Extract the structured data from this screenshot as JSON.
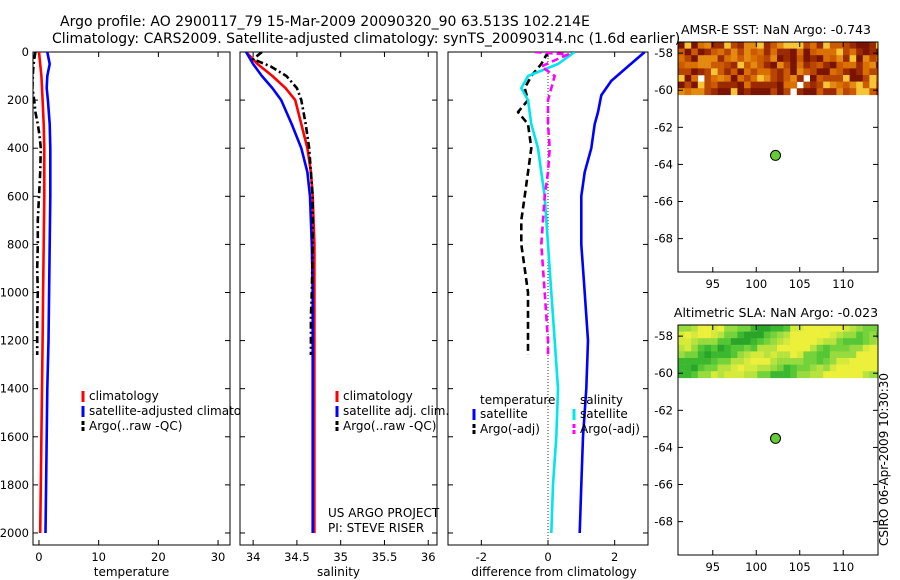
{
  "header": {
    "line1": "Argo profile: AO 2900117_79 15-Mar-2009 20090320_90 63.513S 102.214E",
    "line2": "Climatology: CARS2009. Satellite-adjusted climatology: synTS_20090314.nc (1.6d earlier)"
  },
  "sidebar_stamp": "CSIRO 06-Apr-2009 10:30:30",
  "colors": {
    "climatology": "#ff0000",
    "satellite": "#0000ff",
    "argo": "#000000",
    "satellite_diff_salinity": "#00e5ee",
    "argo_diff_salinity": "#ff00ff",
    "marker": "#66cc33"
  },
  "chart_data": [
    {
      "type": "line",
      "xlabel": "temperature",
      "ylabel": "",
      "xlim": [
        -1,
        32
      ],
      "ylim": [
        2050,
        0
      ],
      "y_reversed": true,
      "xticks": [
        "0",
        "10",
        "20",
        "30"
      ],
      "xtick_values": [
        0,
        10,
        20,
        30
      ],
      "yticks": [
        "0",
        "200",
        "400",
        "600",
        "800",
        "1000",
        "1200",
        "1400",
        "1600",
        "1800",
        "2000"
      ],
      "ytick_values": [
        0,
        200,
        400,
        600,
        800,
        1000,
        1200,
        1400,
        1600,
        1800,
        2000
      ],
      "legend": [
        {
          "label": "climatology",
          "color": "#ff0000",
          "dash": "solid"
        },
        {
          "label": "satellite-adjusted climatolo",
          "color": "#0000ff",
          "dash": "solid"
        },
        {
          "label": "Argo(..raw -QC)",
          "color": "#000000",
          "dash": "dashdot"
        }
      ],
      "series": [
        {
          "color": "#ff0000",
          "dash": "solid",
          "points": [
            [
              0.0,
              0
            ],
            [
              0.2,
              50
            ],
            [
              0.4,
              100
            ],
            [
              0.6,
              200
            ],
            [
              0.8,
              300
            ],
            [
              0.9,
              400
            ],
            [
              0.9,
              600
            ],
            [
              0.8,
              800
            ],
            [
              0.7,
              1000
            ],
            [
              0.6,
              1200
            ],
            [
              0.5,
              1400
            ],
            [
              0.4,
              1600
            ],
            [
              0.3,
              1800
            ],
            [
              0.2,
              2000
            ]
          ]
        },
        {
          "color": "#0000ff",
          "dash": "solid",
          "points": [
            [
              1.4,
              0
            ],
            [
              1.8,
              50
            ],
            [
              1.4,
              100
            ],
            [
              1.3,
              150
            ],
            [
              1.5,
              200
            ],
            [
              1.8,
              300
            ],
            [
              1.9,
              400
            ],
            [
              1.9,
              600
            ],
            [
              1.8,
              800
            ],
            [
              1.7,
              1000
            ],
            [
              1.6,
              1200
            ],
            [
              1.4,
              1400
            ],
            [
              1.3,
              1600
            ],
            [
              1.2,
              1800
            ],
            [
              1.1,
              2000
            ]
          ]
        },
        {
          "color": "#000000",
          "dash": "dashdot",
          "points": [
            [
              -0.6,
              0
            ],
            [
              -0.8,
              30
            ],
            [
              -1.0,
              80
            ],
            [
              -1.1,
              150
            ],
            [
              -0.8,
              200
            ],
            [
              -0.6,
              250
            ],
            [
              -0.2,
              300
            ],
            [
              0.1,
              350
            ],
            [
              0.3,
              400
            ],
            [
              0.2,
              500
            ],
            [
              0.0,
              600
            ],
            [
              -0.2,
              700
            ],
            [
              -0.2,
              800
            ],
            [
              -0.3,
              900
            ],
            [
              -0.2,
              1000
            ],
            [
              -0.3,
              1100
            ],
            [
              -0.3,
              1200
            ],
            [
              -0.3,
              1260
            ]
          ]
        }
      ]
    },
    {
      "type": "line",
      "xlabel": "salinity",
      "ylabel": "",
      "xlim": [
        33.85,
        36.1
      ],
      "ylim": [
        2050,
        0
      ],
      "y_reversed": true,
      "xticks": [
        "34",
        "34.5",
        "35",
        "35.5",
        "36"
      ],
      "xtick_values": [
        34,
        34.5,
        35,
        35.5,
        36
      ],
      "legend": [
        {
          "label": "climatology",
          "color": "#ff0000",
          "dash": "solid"
        },
        {
          "label": "satellite adj. clim.",
          "color": "#0000ff",
          "dash": "solid"
        },
        {
          "label": "Argo(..raw -QC)",
          "color": "#000000",
          "dash": "dashdot"
        }
      ],
      "annotation": [
        "US ARGO PROJECT",
        "PI: STEVE RISER"
      ],
      "series": [
        {
          "color": "#ff0000",
          "dash": "solid",
          "points": [
            [
              33.92,
              0
            ],
            [
              34.05,
              50
            ],
            [
              34.22,
              100
            ],
            [
              34.37,
              150
            ],
            [
              34.48,
              200
            ],
            [
              34.55,
              300
            ],
            [
              34.62,
              400
            ],
            [
              34.66,
              500
            ],
            [
              34.68,
              600
            ],
            [
              34.7,
              800
            ],
            [
              34.7,
              1000
            ],
            [
              34.7,
              1200
            ],
            [
              34.7,
              1400
            ],
            [
              34.7,
              1600
            ],
            [
              34.7,
              1800
            ],
            [
              34.7,
              2000
            ]
          ]
        },
        {
          "color": "#0000ff",
          "dash": "solid",
          "points": [
            [
              33.92,
              0
            ],
            [
              34.0,
              50
            ],
            [
              34.1,
              100
            ],
            [
              34.22,
              150
            ],
            [
              34.32,
              200
            ],
            [
              34.44,
              300
            ],
            [
              34.55,
              400
            ],
            [
              34.62,
              500
            ],
            [
              34.65,
              600
            ],
            [
              34.67,
              800
            ],
            [
              34.68,
              1000
            ],
            [
              34.68,
              1200
            ],
            [
              34.68,
              1400
            ],
            [
              34.68,
              1600
            ],
            [
              34.68,
              1800
            ],
            [
              34.68,
              2000
            ]
          ]
        },
        {
          "color": "#000000",
          "dash": "dashdot",
          "points": [
            [
              34.1,
              0
            ],
            [
              34.0,
              30
            ],
            [
              34.2,
              60
            ],
            [
              34.38,
              100
            ],
            [
              34.5,
              150
            ],
            [
              34.55,
              200
            ],
            [
              34.6,
              300
            ],
            [
              34.64,
              400
            ],
            [
              34.66,
              500
            ],
            [
              34.68,
              600
            ],
            [
              34.68,
              800
            ],
            [
              34.67,
              1000
            ],
            [
              34.66,
              1100
            ],
            [
              34.66,
              1200
            ],
            [
              34.66,
              1260
            ]
          ]
        }
      ]
    },
    {
      "type": "line",
      "xlabel": "difference from climatology",
      "ylabel": "",
      "xlim": [
        -3,
        3
      ],
      "ylim": [
        2050,
        0
      ],
      "y_reversed": true,
      "xticks": [
        "-2",
        "0",
        "2"
      ],
      "xtick_values": [
        -2,
        0,
        2
      ],
      "legend_left_title": "temperature",
      "legend_right_title": "salinity",
      "legend": [
        {
          "label": "satellite",
          "color": "#0000ff",
          "dash": "solid",
          "column": "left"
        },
        {
          "label": "Argo(-adj)",
          "color": "#000000",
          "dash": "dashed",
          "column": "left"
        },
        {
          "label": "satellite",
          "color": "#00e5ee",
          "dash": "solid",
          "column": "right"
        },
        {
          "label": "Argo(-adj)",
          "color": "#ff00ff",
          "dash": "dashed",
          "column": "right"
        }
      ],
      "series": [
        {
          "color": "#0000ff",
          "dash": "solid",
          "points": [
            [
              2.9,
              0
            ],
            [
              2.4,
              60
            ],
            [
              1.9,
              120
            ],
            [
              1.6,
              180
            ],
            [
              1.5,
              250
            ],
            [
              1.4,
              300
            ],
            [
              1.3,
              400
            ],
            [
              1.1,
              500
            ],
            [
              1.0,
              600
            ],
            [
              1.0,
              800
            ],
            [
              1.1,
              1000
            ],
            [
              1.2,
              1200
            ],
            [
              1.15,
              1400
            ],
            [
              1.05,
              1600
            ],
            [
              1.0,
              1800
            ],
            [
              0.95,
              2000
            ]
          ]
        },
        {
          "color": "#000000",
          "dash": "dashed",
          "points": [
            [
              0.0,
              0
            ],
            [
              -0.2,
              50
            ],
            [
              -0.5,
              100
            ],
            [
              -0.7,
              150
            ],
            [
              -0.6,
              200
            ],
            [
              -0.9,
              250
            ],
            [
              -0.6,
              300
            ],
            [
              -0.5,
              400
            ],
            [
              -0.6,
              500
            ],
            [
              -0.7,
              600
            ],
            [
              -0.8,
              700
            ],
            [
              -0.8,
              800
            ],
            [
              -0.7,
              900
            ],
            [
              -0.6,
              1000
            ],
            [
              -0.6,
              1100
            ],
            [
              -0.6,
              1200
            ],
            [
              -0.6,
              1260
            ]
          ]
        },
        {
          "color": "#00e5ee",
          "dash": "solid",
          "points": [
            [
              0.8,
              0
            ],
            [
              0.3,
              50
            ],
            [
              -0.6,
              100
            ],
            [
              -0.8,
              150
            ],
            [
              -0.6,
              200
            ],
            [
              -0.5,
              300
            ],
            [
              -0.3,
              400
            ],
            [
              -0.2,
              500
            ],
            [
              -0.1,
              600
            ],
            [
              0.0,
              800
            ],
            [
              0.1,
              1000
            ],
            [
              0.2,
              1200
            ],
            [
              0.3,
              1400
            ],
            [
              0.25,
              1600
            ],
            [
              0.15,
              1800
            ],
            [
              0.1,
              2000
            ]
          ]
        },
        {
          "color": "#ff00ff",
          "dash": "dashed",
          "points": [
            [
              -0.4,
              0
            ],
            [
              0.6,
              10
            ],
            [
              -0.2,
              60
            ],
            [
              0.2,
              100
            ],
            [
              0.1,
              150
            ],
            [
              0.0,
              200
            ],
            [
              0.0,
              300
            ],
            [
              0.05,
              400
            ],
            [
              0.0,
              500
            ],
            [
              -0.1,
              600
            ],
            [
              -0.2,
              800
            ],
            [
              -0.1,
              1000
            ],
            [
              0.0,
              1200
            ],
            [
              0.0,
              1260
            ]
          ]
        }
      ]
    },
    {
      "type": "heatmap",
      "title": "AMSR-E SST: NaN Argo: -0.743",
      "xlim": [
        91,
        114
      ],
      "ylim": [
        -69.8,
        -57.4
      ],
      "xticks": [
        "95",
        "100",
        "105",
        "110"
      ],
      "xtick_values": [
        95,
        100,
        105,
        110
      ],
      "yticks": [
        "-58",
        "-60",
        "-62",
        "-64",
        "-66",
        "-68"
      ],
      "ytick_values": [
        -58,
        -60,
        -62,
        -64,
        -66,
        -68
      ],
      "data_band_lat": [
        -60.1,
        -57.4
      ],
      "palette": "sst",
      "marker": {
        "lon": 102.214,
        "lat": -63.513
      }
    },
    {
      "type": "heatmap",
      "title": "Altimetric SLA: NaN Argo: -0.023",
      "xlim": [
        91,
        114
      ],
      "ylim": [
        -69.8,
        -57.4
      ],
      "xticks": [
        "95",
        "100",
        "105",
        "110"
      ],
      "xtick_values": [
        95,
        100,
        105,
        110
      ],
      "yticks": [
        "-58",
        "-60",
        "-62",
        "-64",
        "-66",
        "-68"
      ],
      "ytick_values": [
        -58,
        -60,
        -62,
        -64,
        -66,
        -68
      ],
      "data_band_lat": [
        -60.1,
        -57.4
      ],
      "palette": "sla",
      "marker": {
        "lon": 102.214,
        "lat": -63.513
      }
    }
  ]
}
